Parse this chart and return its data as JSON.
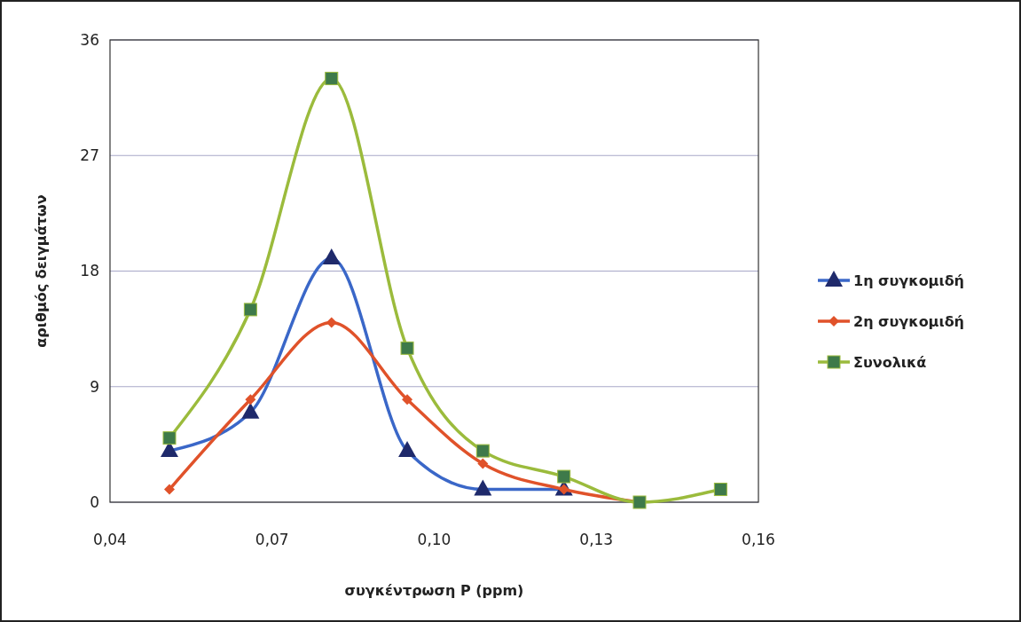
{
  "chart_data": {
    "type": "line",
    "xlabel": "συγκέντρωση P (ppm)",
    "ylabel": "αριθμός δειγμάτων",
    "xlim": [
      0.04,
      0.16
    ],
    "xticks": [
      {
        "value": 0.04,
        "label": "0,04"
      },
      {
        "value": 0.07,
        "label": "0,07"
      },
      {
        "value": 0.1,
        "label": "0,10"
      },
      {
        "value": 0.13,
        "label": "0,13"
      },
      {
        "value": 0.16,
        "label": "0,16"
      }
    ],
    "ylim": [
      0,
      36
    ],
    "yticks": [
      0,
      9,
      18,
      27,
      36
    ],
    "grid": "y",
    "legend": "right",
    "series": [
      {
        "name": "1η συγκομιδή",
        "color": "#3a67c8",
        "marker": "triangle",
        "x": [
          0.051,
          0.066,
          0.081,
          0.095,
          0.109,
          0.124
        ],
        "values": [
          4,
          7,
          19,
          4,
          1,
          1
        ]
      },
      {
        "name": "2η συγκομιδή",
        "color": "#e0522a",
        "marker": "diamond",
        "x": [
          0.051,
          0.066,
          0.081,
          0.095,
          0.109,
          0.124,
          0.138
        ],
        "values": [
          1,
          8,
          14,
          8,
          3,
          1,
          0
        ]
      },
      {
        "name": "Συνολικά",
        "color": "#9bbb3c",
        "marker": "square",
        "x": [
          0.051,
          0.066,
          0.081,
          0.095,
          0.109,
          0.124,
          0.138,
          0.153
        ],
        "values": [
          5,
          15,
          33,
          12,
          4,
          2,
          0,
          1
        ]
      }
    ]
  }
}
